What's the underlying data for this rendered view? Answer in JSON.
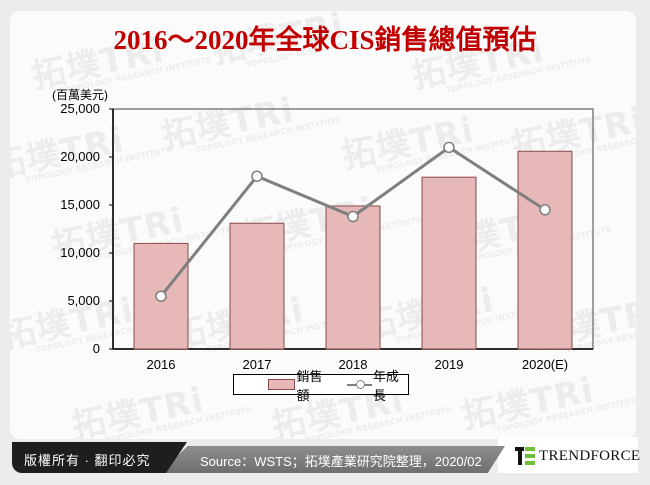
{
  "title": "2016～2020年全球CIS銷售總值預估",
  "unit_label": "(百萬美元)",
  "y_ticks": [
    "25,000",
    "20,000",
    "15,000",
    "10,000",
    "5,000",
    "0"
  ],
  "x_ticks": [
    "2016",
    "2017",
    "2018",
    "2019",
    "2020(E)"
  ],
  "legend": {
    "bar": "銷售額",
    "line": "年成長"
  },
  "watermark": {
    "brand": "拓墣TRi",
    "sub": "TOPOLOGY RESEARCH INSTITUTE"
  },
  "footer": {
    "copyright": "版權所有 · 翻印必究",
    "source": "Source：WSTS；拓墣產業研究院整理，2020/02",
    "logo": "TRENDFORCE"
  },
  "colors": {
    "title": "#c00000",
    "bar_fill": "#e6b8b8",
    "bar_border": "#8b4a4a",
    "line": "#7f7f7f"
  },
  "chart_data": {
    "type": "bar",
    "title": "2016～2020年全球CIS銷售總值預估",
    "xlabel": "",
    "ylabel": "(百萬美元)",
    "ylim": [
      0,
      25000
    ],
    "yticks": [
      0,
      5000,
      10000,
      15000,
      20000,
      25000
    ],
    "grid": false,
    "legend_position": "bottom",
    "categories": [
      "2016",
      "2017",
      "2018",
      "2019",
      "2020(E)"
    ],
    "series": [
      {
        "name": "銷售額",
        "type": "bar",
        "values": [
          11000,
          13100,
          14900,
          17900,
          20600
        ]
      },
      {
        "name": "年成長",
        "type": "line",
        "axis": "secondary (unlabeled)",
        "values_on_primary_scale": [
          5500,
          18000,
          13800,
          21000,
          14500
        ]
      }
    ]
  }
}
